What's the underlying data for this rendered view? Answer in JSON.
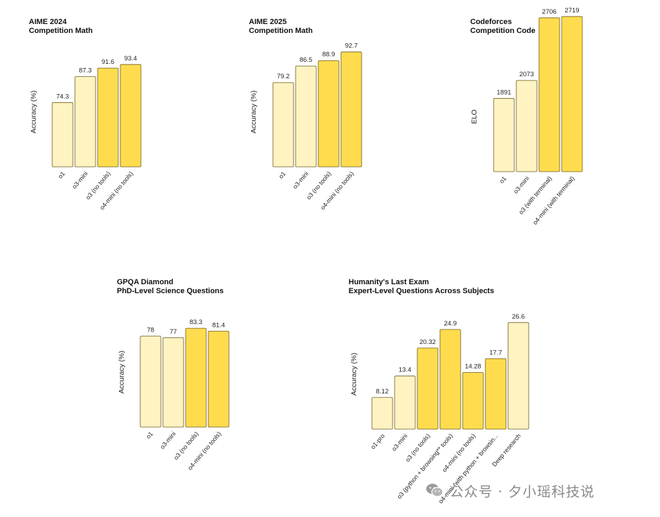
{
  "colors": {
    "light": "#FEF3C1",
    "dark": "#FEDC4E",
    "stroke": "#6b5a1e"
  },
  "watermark": {
    "icon": "wechat-icon",
    "text": "公众号 · 夕小瑶科技说"
  },
  "chart_data": [
    {
      "type": "bar",
      "title": [
        "AIME 2024",
        "Competition Math"
      ],
      "ylabel": "Accuracy (%)",
      "categories": [
        "o1",
        "o3-mini",
        "o3 (no tools)",
        "o4-mini (no tools)"
      ],
      "values": [
        74.3,
        87.3,
        91.6,
        93.4
      ],
      "value_labels": [
        "74.3",
        "87.3",
        "91.6",
        "93.4"
      ],
      "shade": [
        "light",
        "light",
        "dark",
        "dark"
      ]
    },
    {
      "type": "bar",
      "title": [
        "AIME 2025",
        "Competition Math"
      ],
      "ylabel": "Accuracy (%)",
      "categories": [
        "o1",
        "o3-mini",
        "o3 (no tools)",
        "o4-mini (no tools)"
      ],
      "values": [
        79.2,
        86.5,
        88.9,
        92.7
      ],
      "value_labels": [
        "79.2",
        "86.5",
        "88.9",
        "92.7"
      ],
      "shade": [
        "light",
        "light",
        "dark",
        "dark"
      ]
    },
    {
      "type": "bar",
      "title": [
        "Codeforces",
        "Competition Code"
      ],
      "ylabel": "ELO",
      "categories": [
        "o1",
        "o3-mini",
        "o3 (with terminal)",
        "o4-mini (with terminal)"
      ],
      "values": [
        1891,
        2073,
        2706,
        2719
      ],
      "value_labels": [
        "1891",
        "2073",
        "2706",
        "2719"
      ],
      "shade": [
        "light",
        "light",
        "dark",
        "dark"
      ]
    },
    {
      "type": "bar",
      "title": [
        "GPQA Diamond",
        "PhD-Level Science Questions"
      ],
      "ylabel": "Accuracy (%)",
      "categories": [
        "o1",
        "o3-mini",
        "o3 (no tools)",
        "o4-mini (no tools)"
      ],
      "values": [
        78,
        77,
        83.3,
        81.4
      ],
      "value_labels": [
        "78",
        "77",
        "83.3",
        "81.4"
      ],
      "shade": [
        "light",
        "light",
        "dark",
        "dark"
      ]
    },
    {
      "type": "bar",
      "title": [
        "Humanity's Last Exam",
        "Expert-Level Questions Across Subjects"
      ],
      "ylabel": "Accuracy (%)",
      "categories": [
        "o1-pro",
        "o3-mini",
        "o3 (no tools)",
        "o3 (python + browsing** tools)",
        "o4-mini (no tools)",
        "o4-mini (with python + browsin...",
        "Deep research"
      ],
      "values": [
        8.12,
        13.4,
        20.32,
        24.9,
        14.28,
        17.7,
        26.6
      ],
      "value_labels": [
        "8.12",
        "13.4",
        "20.32",
        "24.9",
        "14.28",
        "17.7",
        "26.6"
      ],
      "shade": [
        "light",
        "light",
        "dark",
        "dark",
        "dark",
        "dark",
        "light"
      ]
    }
  ]
}
